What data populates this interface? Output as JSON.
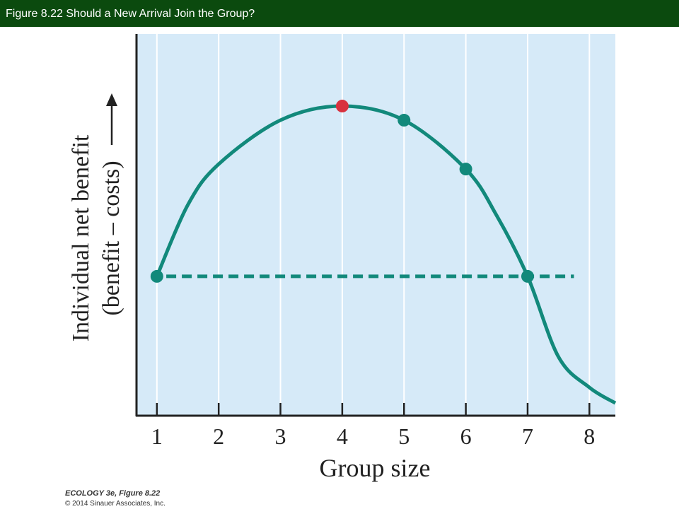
{
  "header": {
    "title": "Figure 8.22  Should a New Arrival Join the Group?"
  },
  "chart_data": {
    "type": "line",
    "xlabel": "Group size",
    "ylabel": [
      "Individual net benefit",
      "(benefit – costs)"
    ],
    "xlim": [
      0.67,
      8.42
    ],
    "ylim": [
      0,
      10
    ],
    "xticks": [
      1,
      2,
      3,
      4,
      5,
      6,
      7,
      8
    ],
    "grid": true,
    "series": [
      {
        "style": "solid",
        "color": "#12897b",
        "x": [
          1,
          1.5,
          2,
          3,
          4,
          5,
          6,
          6.5,
          7,
          7.5,
          8,
          8.42
        ],
        "values": [
          3.65,
          5.52,
          6.59,
          7.74,
          8.11,
          7.74,
          6.46,
          5.24,
          3.65,
          1.54,
          0.74,
          0.33
        ]
      },
      {
        "style": "dashed",
        "color": "#12897b",
        "x": [
          0.9,
          7.75
        ],
        "values": [
          3.65,
          3.65
        ]
      },
      {
        "style": "markers",
        "color": "#12897b",
        "x": [
          1,
          5,
          6,
          7
        ],
        "values": [
          3.65,
          7.74,
          6.46,
          3.65
        ]
      },
      {
        "style": "markers",
        "color": "#d8323f",
        "x": [
          4
        ],
        "values": [
          8.11
        ]
      }
    ]
  },
  "footer": {
    "source": "ECOLOGY 3e, Figure 8.22",
    "copyright": "© 2014 Sinauer Associates, Inc."
  }
}
